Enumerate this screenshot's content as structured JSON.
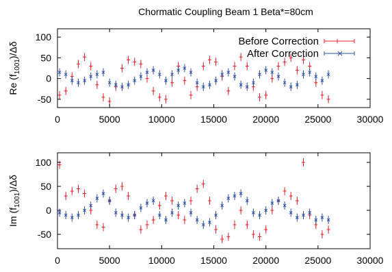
{
  "title": "Chormatic Coupling Beam 1 Beta*=80cm",
  "colors": {
    "before": "#e8202a",
    "after": "#2b4fa8",
    "axes": "#000000"
  },
  "chart_data": [
    {
      "type": "scatter",
      "ylabel": "Re (f1001)/Δδ",
      "ylabel_main": "Re (f",
      "ylabel_sub": "1001",
      "ylabel_tail": ")/Δδ",
      "xlim": [
        0,
        30000
      ],
      "ylim": [
        -70,
        120
      ],
      "xticks": [
        0,
        5000,
        10000,
        15000,
        20000,
        25000,
        30000
      ],
      "yticks": [
        -50,
        0,
        50,
        100
      ],
      "grid": false,
      "legend_position": "top-right",
      "series": [
        {
          "name": "Before Correction",
          "marker": "plus",
          "x": [
            200,
            800,
            1400,
            2000,
            2600,
            3200,
            3800,
            4400,
            5000,
            5600,
            6200,
            6800,
            7400,
            8000,
            8600,
            9200,
            9800,
            10400,
            11000,
            11600,
            12200,
            12800,
            13400,
            14000,
            14600,
            15200,
            15800,
            16400,
            17000,
            17600,
            18200,
            18800,
            19400,
            20000,
            20600,
            21200,
            21800,
            22400,
            23000,
            23600,
            24200,
            24800,
            25400,
            26000
          ],
          "y": [
            -40,
            -30,
            5,
            35,
            52,
            30,
            -15,
            -45,
            -55,
            -20,
            25,
            45,
            40,
            35,
            0,
            -30,
            -45,
            -50,
            -10,
            30,
            -5,
            -40,
            -20,
            30,
            45,
            40,
            5,
            -30,
            30,
            52,
            30,
            -20,
            -45,
            -40,
            0,
            30,
            40,
            50,
            20,
            45,
            30,
            -10,
            -40,
            -50
          ]
        },
        {
          "name": "After Correction",
          "marker": "x",
          "x": [
            200,
            800,
            1400,
            2000,
            2600,
            3200,
            3800,
            4400,
            5000,
            5600,
            6200,
            6800,
            7400,
            8000,
            8600,
            9200,
            9800,
            10400,
            11000,
            11600,
            12200,
            12800,
            13400,
            14000,
            14600,
            15200,
            15800,
            16400,
            17000,
            17600,
            18200,
            18800,
            19400,
            20000,
            20600,
            21200,
            21800,
            22400,
            23000,
            23600,
            24200,
            24800,
            25400,
            26000
          ],
          "y": [
            15,
            10,
            -5,
            -10,
            -5,
            5,
            10,
            15,
            -10,
            -15,
            -20,
            -15,
            -5,
            5,
            15,
            20,
            10,
            -5,
            10,
            20,
            25,
            15,
            -10,
            -20,
            -15,
            -5,
            10,
            15,
            5,
            -15,
            -20,
            -10,
            10,
            20,
            15,
            5,
            -10,
            -20,
            -15,
            10,
            15,
            5,
            -5,
            10
          ]
        }
      ]
    },
    {
      "type": "scatter",
      "ylabel": "Im (f1001)/Δδ",
      "ylabel_main": "Im (f",
      "ylabel_sub": "1001",
      "ylabel_tail": ")/Δδ",
      "xlim": [
        0,
        30000
      ],
      "ylim": [
        -80,
        120
      ],
      "xticks": [
        0,
        5000,
        10000,
        15000,
        20000,
        25000,
        30000
      ],
      "yticks": [
        -50,
        0,
        50,
        100
      ],
      "grid": false,
      "series": [
        {
          "name": "Before Correction",
          "marker": "plus",
          "x": [
            200,
            800,
            1400,
            2000,
            2600,
            3200,
            3800,
            4400,
            5000,
            5600,
            6200,
            6800,
            7400,
            8000,
            8600,
            9200,
            9800,
            10400,
            11000,
            11600,
            12200,
            12800,
            13400,
            14000,
            14600,
            15200,
            15800,
            16400,
            17000,
            17600,
            18200,
            18800,
            19400,
            20000,
            20600,
            21200,
            21800,
            22400,
            23000,
            23600,
            24200,
            24800,
            25400,
            26000
          ],
          "y": [
            95,
            30,
            40,
            45,
            35,
            0,
            -30,
            -35,
            20,
            45,
            50,
            30,
            -10,
            -40,
            -30,
            -20,
            10,
            30,
            20,
            -10,
            -20,
            20,
            45,
            55,
            20,
            -40,
            -60,
            -55,
            -30,
            0,
            -30,
            -50,
            -55,
            -40,
            0,
            20,
            40,
            30,
            20,
            100,
            -10,
            -30,
            -50,
            -40
          ]
        },
        {
          "name": "After Correction",
          "marker": "x",
          "x": [
            200,
            800,
            1400,
            2000,
            2600,
            3200,
            3800,
            4400,
            5000,
            5600,
            6200,
            6800,
            7400,
            8000,
            8600,
            9200,
            9800,
            10400,
            11000,
            11600,
            12200,
            12800,
            13400,
            14000,
            14600,
            15200,
            15800,
            16400,
            17000,
            17600,
            18200,
            18800,
            19400,
            20000,
            20600,
            21200,
            21800,
            22400,
            23000,
            23600,
            24200,
            24800,
            25400,
            26000
          ],
          "y": [
            -5,
            -10,
            -15,
            -10,
            0,
            10,
            25,
            35,
            20,
            -5,
            -10,
            -15,
            -10,
            5,
            15,
            20,
            -10,
            -20,
            -5,
            10,
            15,
            -5,
            -20,
            -30,
            -25,
            -10,
            10,
            25,
            30,
            35,
            20,
            -5,
            -10,
            0,
            15,
            20,
            10,
            -5,
            -15,
            -10,
            -5,
            -20,
            -15,
            -20
          ]
        }
      ]
    }
  ]
}
